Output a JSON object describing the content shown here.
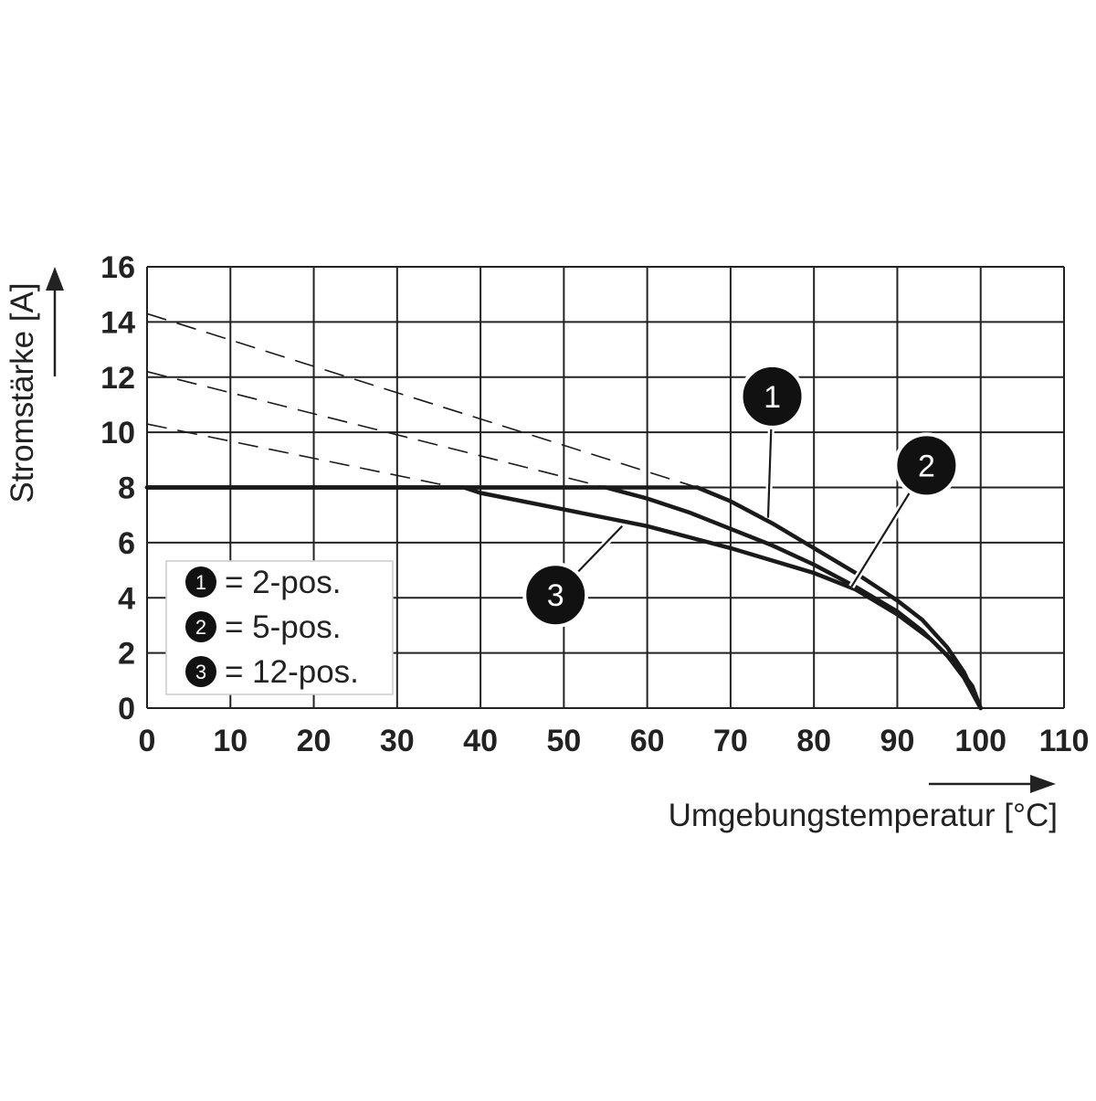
{
  "chart_data": {
    "type": "line",
    "xlabel": "Umgebungstemperatur [°C]",
    "ylabel": "Stromstärke [A]",
    "xlim": [
      0,
      110
    ],
    "ylim": [
      0,
      16
    ],
    "x_ticks": [
      "0",
      "10",
      "20",
      "30",
      "40",
      "50",
      "60",
      "70",
      "80",
      "90",
      "100",
      "110"
    ],
    "y_ticks": [
      "0",
      "2",
      "4",
      "6",
      "8",
      "10",
      "12",
      "14",
      "16"
    ],
    "x_tick_values": [
      0,
      10,
      20,
      30,
      40,
      50,
      60,
      70,
      80,
      90,
      100,
      110
    ],
    "y_tick_values": [
      0,
      2,
      4,
      6,
      8,
      10,
      12,
      14,
      16
    ],
    "grid": true,
    "legend_position": "bottom-left",
    "colors": {
      "line": "#1a1a1a",
      "bubble": "#111111",
      "grid": "#222222"
    },
    "series": [
      {
        "marker": "1",
        "name": "= 2-pos.",
        "x": [
          0,
          10,
          20,
          30,
          40,
          50,
          60,
          66,
          70,
          75,
          80,
          85,
          90,
          93,
          96,
          98,
          100
        ],
        "y": [
          8,
          8,
          8,
          8,
          8,
          8,
          8,
          8,
          7.5,
          6.7,
          5.8,
          4.9,
          3.9,
          3.2,
          2.2,
          1.3,
          0
        ],
        "derating_extension": {
          "x": [
            0,
            66
          ],
          "y": [
            14.3,
            8
          ]
        }
      },
      {
        "marker": "2",
        "name": "= 5-pos.",
        "x": [
          0,
          10,
          20,
          30,
          40,
          50,
          55,
          60,
          65,
          70,
          75,
          80,
          85,
          90,
          93,
          96,
          98,
          100
        ],
        "y": [
          8,
          8,
          8,
          8,
          8,
          8,
          8,
          7.6,
          7.1,
          6.5,
          5.9,
          5.2,
          4.4,
          3.5,
          2.8,
          1.9,
          1.1,
          0
        ],
        "derating_extension": {
          "x": [
            0,
            55
          ],
          "y": [
            12.2,
            8
          ]
        }
      },
      {
        "marker": "3",
        "name": "= 12-pos.",
        "x": [
          0,
          10,
          20,
          30,
          38,
          40,
          50,
          60,
          70,
          80,
          85,
          90,
          94,
          97,
          99,
          100
        ],
        "y": [
          8,
          8,
          8,
          8,
          8,
          7.8,
          7.2,
          6.6,
          5.8,
          4.9,
          4.3,
          3.4,
          2.5,
          1.6,
          0.8,
          0
        ],
        "derating_extension": {
          "x": [
            0,
            37
          ],
          "y": [
            10.3,
            8
          ]
        }
      }
    ]
  }
}
